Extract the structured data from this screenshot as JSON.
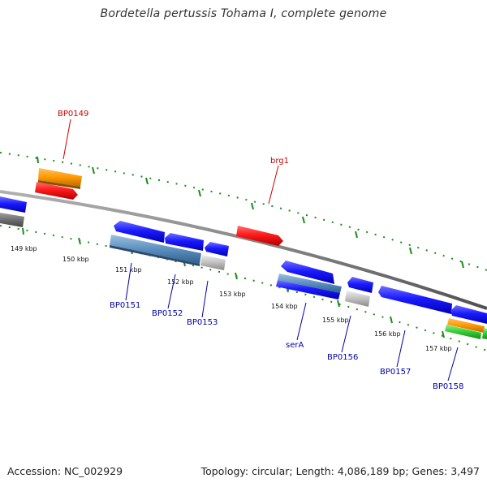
{
  "title": "Bordetella pertussis Tohama I, complete genome",
  "footer": {
    "accession": "Accession: NC_002929",
    "summary": "Topology: circular; Length: 4,086,189 bp; Genes: 3,497"
  },
  "colors": {
    "backbone": "#808080",
    "tick": "#1a8c1a",
    "forward_gene": "#1a1aff",
    "reverse_gene": "#ff1a1a",
    "rna_gene": "#ff9900",
    "pseudo_gene": "#c0c0c0",
    "steel_gene": "#5b8fbf",
    "green_gene": "#33cc33",
    "gray_gene": "#6e6e6e",
    "label_forward": "#0000aa",
    "label_reverse": "#cc0000"
  },
  "tick_labels": [
    "149 kbp",
    "150 kbp",
    "151 kbp",
    "152 kbp",
    "153 kbp",
    "154 kbp",
    "155 kbp",
    "156 kbp",
    "157 kbp"
  ],
  "genes": [
    {
      "label": "BP0149",
      "strand": "reverse",
      "color": "red"
    },
    {
      "label": "brg1",
      "strand": "reverse",
      "color": "red"
    },
    {
      "label": "BP0151",
      "strand": "forward",
      "color": "blue"
    },
    {
      "label": "BP0152",
      "strand": "forward",
      "color": "blue"
    },
    {
      "label": "BP0153",
      "strand": "forward",
      "color": "blue"
    },
    {
      "label": "serA",
      "strand": "forward",
      "color": "blue"
    },
    {
      "label": "BP0156",
      "strand": "forward",
      "color": "blue"
    },
    {
      "label": "BP0157",
      "strand": "forward",
      "color": "blue"
    },
    {
      "label": "BP0158",
      "strand": "forward",
      "color": "blue"
    }
  ]
}
